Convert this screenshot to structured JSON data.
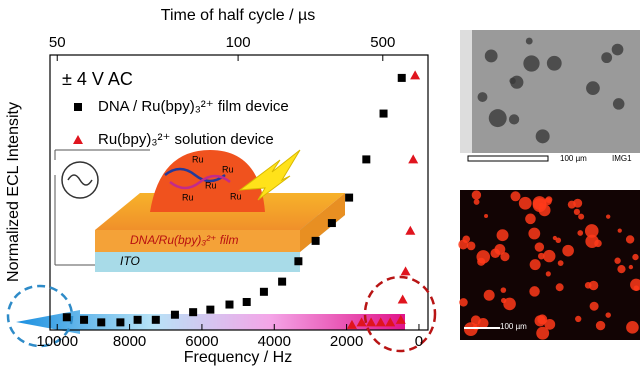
{
  "chart_data": {
    "type": "scatter",
    "x_label": "Frequency / Hz",
    "x2_label": "Time of half cycle / µs",
    "y_label": "Normalized ECL Intensity",
    "annotation": "± 4 V AC",
    "xlim": [
      10200,
      -250
    ],
    "xticks": [
      10000,
      8000,
      6000,
      4000,
      2000,
      0
    ],
    "x2ticks": [
      50,
      100,
      500
    ],
    "ylim": [
      0,
      1.08
    ],
    "series": [
      {
        "name": "DNA / Ru(bpy)₃²⁺ film device",
        "color": "#000000",
        "marker": "square",
        "x": [
          476,
          979,
          1455,
          1931,
          2407,
          2857,
          3333,
          3783,
          4286,
          4762,
          5238,
          5767,
          6243,
          6746,
          7275,
          7778,
          8254,
          8783,
          9259,
          9735
        ],
        "values": [
          0.99,
          0.85,
          0.67,
          0.52,
          0.42,
          0.35,
          0.27,
          0.19,
          0.15,
          0.11,
          0.1,
          0.08,
          0.07,
          0.06,
          0.04,
          0.04,
          0.03,
          0.03,
          0.04,
          0.05
        ]
      },
      {
        "name": "Ru(bpy)₃²⁺ solution device",
        "color": "#e0141e",
        "marker": "triangle",
        "x": [
          106,
          159,
          238,
          370,
          450,
          503,
          794,
          1058,
          1323,
          1587,
          1852
        ],
        "values": [
          1.0,
          0.67,
          0.39,
          0.23,
          0.12,
          0.04,
          0.03,
          0.03,
          0.03,
          0.03,
          0.02
        ]
      }
    ],
    "inset": {
      "film_label": "DNA/Ru(bpy)₃²⁺ film",
      "substrate_label": "ITO",
      "molecule_label": "Ru"
    }
  },
  "images": [
    {
      "scale_label": "100 µm",
      "id_label": "IMG1"
    },
    {
      "scale_label": "100 µm"
    }
  ]
}
